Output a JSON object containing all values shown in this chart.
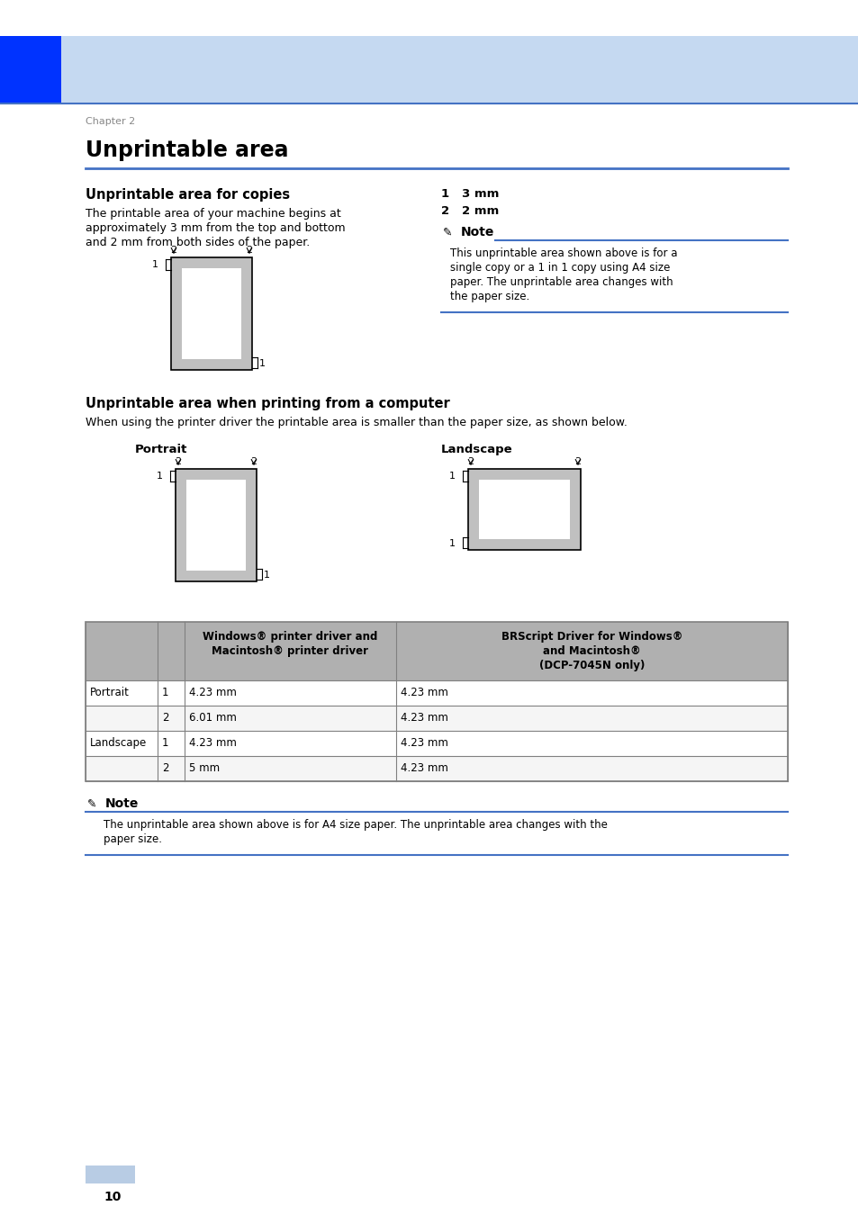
{
  "bg_color": "#ffffff",
  "header_bar_color": "#c5d9f1",
  "header_blue_rect_color": "#0033ff",
  "chapter_text": "Chapter 2",
  "chapter_color": "#888888",
  "title": "Unprintable area",
  "title_color": "#000000",
  "title_line_color": "#4472c4",
  "section1_title": "Unprintable area for copies",
  "section1_body_lines": [
    "The printable area of your machine begins at",
    "approximately 3 mm from the top and bottom",
    "and 2 mm from both sides of the paper."
  ],
  "note1_title": "Note",
  "note1_body_lines": [
    "This unprintable area shown above is for a",
    "single copy or a 1 in 1 copy using A4 size",
    "paper. The unprintable area changes with",
    "the paper size."
  ],
  "label1": "1   3 mm",
  "label2": "2   2 mm",
  "section2_title": "Unprintable area when printing from a computer",
  "section2_body": "When using the printer driver the printable area is smaller than the paper size, as shown below.",
  "portrait_label": "Portrait",
  "landscape_label": "Landscape",
  "table_col2_header_lines": [
    "Windows® printer driver and",
    "Macintosh® printer driver"
  ],
  "table_col3_header_lines": [
    "BRScript Driver for Windows®",
    "and Macintosh®",
    "(DCP-7045N only)"
  ],
  "table_rows": [
    [
      "Portrait",
      "1",
      "4.23 mm",
      "4.23 mm"
    ],
    [
      "",
      "2",
      "6.01 mm",
      "4.23 mm"
    ],
    [
      "Landscape",
      "1",
      "4.23 mm",
      "4.23 mm"
    ],
    [
      "",
      "2",
      "5 mm",
      "4.23 mm"
    ]
  ],
  "note2_title": "Note",
  "note2_body_lines": [
    "The unprintable area shown above is for A4 size paper. The unprintable area changes with the",
    "paper size."
  ],
  "page_number": "10",
  "gray_color": "#c0c0c0",
  "table_header_bg": "#b0b0b0",
  "table_border_color": "#808080"
}
